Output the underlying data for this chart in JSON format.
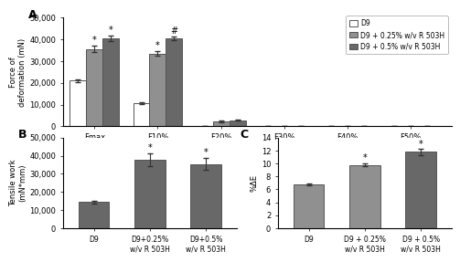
{
  "panel_A": {
    "categories": [
      "Fmax",
      "F10%",
      "F20%",
      "F30%",
      "F40%",
      "F50%"
    ],
    "D9_values": [
      21000,
      10500,
      0,
      0,
      0,
      0
    ],
    "D9_025_values": [
      35500,
      33500,
      2200,
      150,
      150,
      150
    ],
    "D9_05_values": [
      40500,
      40500,
      2800,
      200,
      200,
      200
    ],
    "D9_errors": [
      700,
      400,
      0,
      0,
      0,
      0
    ],
    "D9_025_errors": [
      1500,
      1200,
      350,
      50,
      50,
      50
    ],
    "D9_05_errors": [
      1200,
      1000,
      300,
      60,
      60,
      60
    ],
    "ylabel": "Force of\ndeformation (mN)",
    "ylim": [
      0,
      50000
    ],
    "yticks": [
      0,
      10000,
      20000,
      30000,
      40000,
      50000
    ],
    "ytick_labels": [
      "0",
      "10,000",
      "20,000",
      "30,000",
      "40,000",
      "50,000"
    ],
    "annotations_025": [
      "*",
      "*",
      "",
      "",
      "",
      ""
    ],
    "annotations_05": [
      "*",
      "#",
      "",
      "",
      "",
      ""
    ],
    "panel_label": "A"
  },
  "panel_B": {
    "categories": [
      "D9",
      "D9+0.25%\nw/v R 503H",
      "D9+0.5%\nw/v R 503H"
    ],
    "values": [
      14500,
      38000,
      35500
    ],
    "errors": [
      700,
      3500,
      3200
    ],
    "ylabel": "Tensile work\n(mN*mm)",
    "ylim": [
      0,
      50000
    ],
    "yticks": [
      0,
      10000,
      20000,
      30000,
      40000,
      50000
    ],
    "ytick_labels": [
      "0",
      "10,000",
      "20,000",
      "30,000",
      "40,000",
      "50,000"
    ],
    "annotations": [
      "",
      "*",
      "*"
    ],
    "panel_label": "B"
  },
  "panel_C": {
    "categories": [
      "D9",
      "D9 + 0.25%\nw/v R 503H",
      "D9 + 0.5%\nw/v R 503H"
    ],
    "values": [
      6.8,
      9.8,
      11.8
    ],
    "errors": [
      0.18,
      0.25,
      0.45
    ],
    "ylabel": "%ΔE",
    "ylim": [
      0,
      14
    ],
    "yticks": [
      0,
      2,
      4,
      6,
      8,
      10,
      12,
      14
    ],
    "ytick_labels": [
      "0",
      "2",
      "4",
      "6",
      "8",
      "10",
      "12",
      "14"
    ],
    "annotations": [
      "",
      "*",
      "*"
    ],
    "panel_label": "C"
  },
  "colors": {
    "D9_white": "#ffffff",
    "D9_light": "#b0b0b0",
    "D9_025": "#909090",
    "D9_05": "#686868"
  },
  "legend_labels": [
    "D9",
    "D9 + 0.25% w/v R 503H",
    "D9 + 0.5% w/v R 503H"
  ],
  "bar_edgecolor": "#555555",
  "errorbar_color": "#333333",
  "font_size": 6.0
}
